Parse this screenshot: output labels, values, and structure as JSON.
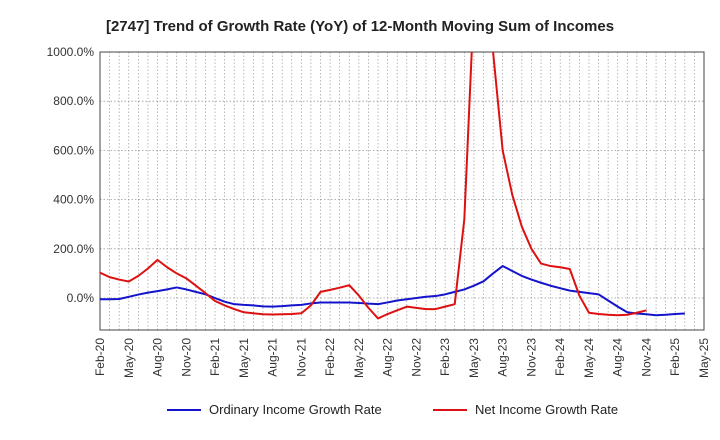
{
  "chart_data": {
    "type": "line",
    "title": "[2747]  Trend of Growth Rate (YoY) of 12-Month Moving Sum of Incomes",
    "xlabel": "",
    "ylabel": "",
    "ylim": [
      -130,
      1000
    ],
    "y_ticks": [
      0,
      200,
      400,
      600,
      800,
      1000
    ],
    "y_tick_labels": [
      "0.0%",
      "200.0%",
      "400.0%",
      "600.0%",
      "800.0%",
      "1000.0%"
    ],
    "x_tick_labels": [
      "Feb-20",
      "May-20",
      "Aug-20",
      "Nov-20",
      "Feb-21",
      "May-21",
      "Aug-21",
      "Nov-21",
      "Feb-22",
      "May-22",
      "Aug-22",
      "Nov-22",
      "Feb-23",
      "May-23",
      "Aug-23",
      "Nov-23",
      "Feb-24",
      "May-24",
      "Aug-24",
      "Nov-24",
      "Feb-25",
      "May-25"
    ],
    "x_start": "2020-02",
    "grid": true,
    "legend": "bottom",
    "series": [
      {
        "name": "Ordinary Income Growth Rate",
        "color": "#1414cc",
        "values": [
          -5,
          -5,
          -4,
          5,
          14,
          22,
          28,
          35,
          43,
          35,
          25,
          15,
          0,
          -15,
          -25,
          -28,
          -30,
          -34,
          -35,
          -33,
          -30,
          -28,
          -22,
          -18,
          -18,
          -18,
          -18,
          -20,
          -23,
          -25,
          -18,
          -10,
          -5,
          0,
          5,
          8,
          15,
          25,
          35,
          50,
          68,
          100,
          130,
          110,
          90,
          75,
          62,
          50,
          40,
          30,
          25,
          20,
          15,
          -10,
          -35,
          -58,
          -63,
          -66,
          -70,
          -68,
          -65,
          -63
        ],
        "values_start_index": 0
      },
      {
        "name": "Net Income Growth Rate",
        "color": "#dd1111",
        "values": [
          103,
          85,
          75,
          67,
          90,
          120,
          155,
          125,
          100,
          80,
          50,
          20,
          -12,
          -30,
          -45,
          -58,
          -62,
          -66,
          -67,
          -66,
          -65,
          -62,
          -30,
          25,
          33,
          42,
          52,
          10,
          -40,
          -83,
          -65,
          -50,
          -35,
          -40,
          -45,
          -45,
          -35,
          -25,
          320,
          1200,
          1150,
          1000,
          600,
          420,
          290,
          200,
          140,
          130,
          125,
          118,
          10,
          -60,
          -65,
          -68,
          -70,
          -68,
          -60,
          -50
        ],
        "values_start_index": 0
      }
    ]
  }
}
